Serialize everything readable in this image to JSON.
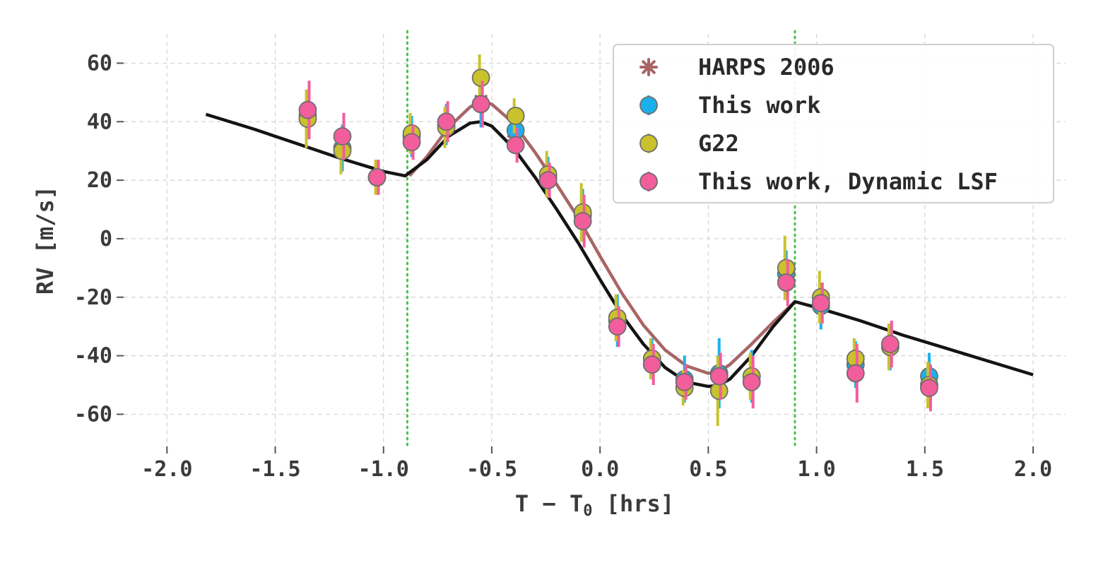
{
  "chart_data": {
    "type": "scatter",
    "xlabel_prefix": "T − T",
    "xlabel_subscript": "0",
    "xlabel_suffix": " [hrs]",
    "ylabel": "RV [m/s]",
    "xlim": [
      -2.2,
      2.15
    ],
    "ylim": [
      -71,
      70
    ],
    "xticks": [
      -2.0,
      -1.5,
      -1.0,
      -0.5,
      0.0,
      0.5,
      1.0,
      1.5,
      2.0
    ],
    "xtick_labels": [
      "-2.0",
      "-1.5",
      "-1.0",
      "-0.5",
      "0.0",
      "0.5",
      "1.0",
      "1.5",
      "2.0"
    ],
    "yticks": [
      60,
      40,
      20,
      0,
      -20,
      -40,
      -60
    ],
    "ytick_labels": [
      "60",
      "40",
      "20",
      "0",
      "-20",
      "-40",
      "-60"
    ],
    "grid": true,
    "legend_position": "top-right",
    "colors": {
      "harps": "#a86565",
      "this_work": "#1ab0ee",
      "g22": "#c9c22c",
      "dynamic_lsf": "#f25d9c",
      "model_black": "#141414",
      "model_harps": "#a86565",
      "vline": "#4cc04c"
    },
    "vlines": [
      -0.89,
      0.9
    ],
    "series": [
      {
        "name": "HARPS 2006",
        "marker": "asterisk",
        "x": [
          -1.35,
          -1.19,
          -1.03,
          -0.87,
          -0.71,
          -0.55,
          -0.39,
          -0.24,
          -0.08,
          0.08,
          0.24,
          0.39,
          0.55,
          0.7,
          0.86,
          1.02,
          1.18,
          1.34,
          1.52
        ],
        "y": [
          43,
          34,
          21,
          34,
          39,
          47,
          35,
          21,
          7,
          -29,
          -42,
          -50,
          -47,
          -48,
          -13,
          -22,
          -44,
          -37,
          -49
        ],
        "err": [
          0,
          0,
          0,
          0,
          0,
          0,
          0,
          0,
          0,
          0,
          0,
          0,
          0,
          0,
          0,
          0,
          0,
          0,
          0
        ]
      },
      {
        "name": "This work",
        "marker": "circle",
        "x": [
          -1.35,
          -1.19,
          -1.03,
          -0.87,
          -0.71,
          -0.55,
          -0.39,
          -0.24,
          -0.08,
          0.08,
          0.24,
          0.39,
          0.55,
          0.7,
          0.86,
          1.02,
          1.18,
          1.34,
          1.52
        ],
        "y": [
          42,
          31,
          21,
          35,
          39,
          46,
          37,
          21,
          8,
          -28,
          -41,
          -48,
          -46,
          -47,
          -12,
          -23,
          -43,
          -37,
          -47
        ],
        "err": [
          8,
          8,
          6,
          7,
          7,
          8,
          8,
          7,
          9,
          9,
          7,
          8,
          12,
          9,
          8,
          8,
          8,
          8,
          8
        ]
      },
      {
        "name": "G22",
        "marker": "circle",
        "x": [
          -1.35,
          -1.19,
          -1.03,
          -0.87,
          -0.71,
          -0.55,
          -0.39,
          -0.24,
          -0.08,
          0.08,
          0.24,
          0.39,
          0.55,
          0.7,
          0.86,
          1.02,
          1.18,
          1.34,
          1.52
        ],
        "y": [
          41,
          30,
          21,
          36,
          38,
          55,
          42,
          22,
          9,
          -27,
          -41,
          -51,
          -52,
          -47,
          -10,
          -20,
          -41,
          -37,
          -50
        ],
        "err": [
          10,
          8,
          6,
          7,
          7,
          8,
          6,
          8,
          10,
          8,
          7,
          6,
          12,
          8,
          11,
          9,
          7,
          8,
          8
        ]
      },
      {
        "name": "This work, Dynamic LSF",
        "marker": "circle",
        "x": [
          -1.35,
          -1.19,
          -1.03,
          -0.87,
          -0.71,
          -0.55,
          -0.39,
          -0.24,
          -0.08,
          0.08,
          0.24,
          0.39,
          0.55,
          0.7,
          0.86,
          1.02,
          1.18,
          1.34,
          1.52
        ],
        "y": [
          44,
          35,
          21,
          33,
          40,
          46,
          32,
          20,
          6,
          -30,
          -43,
          -49,
          -47,
          -49,
          -15,
          -22,
          -46,
          -36,
          -51
        ],
        "err": [
          10,
          8,
          6,
          6,
          7,
          8,
          6,
          6,
          9,
          7,
          7,
          6,
          8,
          9,
          8,
          7,
          10,
          8,
          8
        ]
      }
    ],
    "models": [
      {
        "style": "black",
        "x": [
          -1.82,
          -1.6,
          -1.4,
          -1.2,
          -1.0,
          -0.9,
          -0.8,
          -0.7,
          -0.6,
          -0.55,
          -0.5,
          -0.4,
          -0.3,
          -0.2,
          -0.1,
          0.0,
          0.1,
          0.2,
          0.3,
          0.4,
          0.5,
          0.55,
          0.6,
          0.7,
          0.8,
          0.9,
          1.0,
          1.2,
          1.4,
          1.6,
          1.8,
          2.0
        ],
        "y": [
          42.5,
          37.5,
          32.5,
          27.5,
          23,
          21.5,
          27,
          35,
          39.5,
          40,
          38.5,
          31,
          21,
          10,
          -1.5,
          -14,
          -26,
          -36,
          -44,
          -49,
          -50.5,
          -50,
          -48,
          -40,
          -30,
          -21.5,
          -23.5,
          -28,
          -33,
          -37.5,
          -42,
          -46.5
        ]
      },
      {
        "style": "harps",
        "x": [
          -0.88,
          -0.8,
          -0.7,
          -0.6,
          -0.55,
          -0.5,
          -0.4,
          -0.3,
          -0.2,
          -0.1,
          0.0,
          0.1,
          0.2,
          0.3,
          0.4,
          0.5,
          0.55,
          0.6,
          0.7,
          0.8,
          0.9
        ],
        "y": [
          21.5,
          28,
          38,
          45,
          47,
          46,
          39.5,
          29.5,
          18.5,
          7,
          -6,
          -18.5,
          -29.5,
          -38,
          -43.5,
          -46,
          -45.5,
          -43,
          -36,
          -28.5,
          -21.5
        ]
      }
    ],
    "legend": [
      {
        "label": "HARPS 2006",
        "marker": "asterisk",
        "color_key": "harps"
      },
      {
        "label": "This work",
        "marker": "circle",
        "color_key": "this_work"
      },
      {
        "label": "G22",
        "marker": "circle",
        "color_key": "g22"
      },
      {
        "label": "This work, Dynamic LSF",
        "marker": "circle",
        "color_key": "dynamic_lsf"
      }
    ]
  }
}
